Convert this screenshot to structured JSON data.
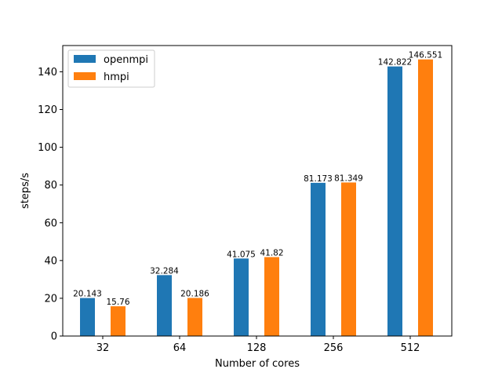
{
  "chart_data": {
    "type": "bar",
    "categories": [
      "32",
      "64",
      "128",
      "256",
      "512"
    ],
    "series": [
      {
        "name": "openmpi",
        "values": [
          20.143,
          32.284,
          41.075,
          81.173,
          142.822
        ],
        "labels": [
          "20.143",
          "32.284",
          "41.075",
          "81.173",
          "142.822"
        ],
        "color": "#1f77b4"
      },
      {
        "name": "hmpi",
        "values": [
          15.76,
          20.186,
          41.82,
          81.349,
          146.551
        ],
        "labels": [
          "15.76",
          "20.186",
          "41.82",
          "81.349",
          "146.551"
        ],
        "color": "#ff7f0e"
      }
    ],
    "xlabel": "Number of cores",
    "ylabel": "steps/s",
    "ylim": [
      0,
      153.9
    ],
    "yticks": [
      0,
      20,
      40,
      60,
      80,
      100,
      120,
      140
    ],
    "ytick_labels": [
      "0",
      "20",
      "40",
      "60",
      "80",
      "100",
      "120",
      "140"
    ],
    "grid": false,
    "legend_position": "top-left"
  }
}
